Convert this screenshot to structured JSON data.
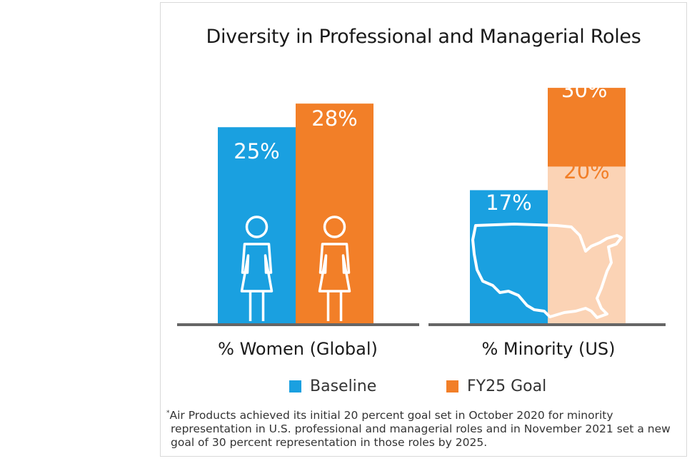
{
  "chart_data": {
    "type": "bar",
    "title": "Diversity in Professional and Managerial Roles",
    "categories": [
      "% Women (Global)",
      "% Minority (US)"
    ],
    "series": [
      {
        "name": "Baseline",
        "values": [
          25,
          17
        ],
        "labels": [
          "25%",
          "17%"
        ],
        "color": "#1aa0e0"
      },
      {
        "name": "FY25 Goal",
        "values": [
          28,
          30
        ],
        "labels": [
          "28%",
          "30%"
        ],
        "color": "#f27f28"
      }
    ],
    "secondary_marker": {
      "category": "% Minority (US)",
      "value": 20,
      "label": "20%",
      "asterisk": "*",
      "color": "#fbd3b5",
      "label_color": "#f27f28"
    },
    "ylim": [
      0,
      33
    ],
    "grid": false,
    "legend": "bottom",
    "icons": [
      "woman-icon",
      "woman-icon",
      "usa-map-icon"
    ]
  },
  "footnote": {
    "asterisk": "*",
    "lines": [
      "Air Products achieved its initial 20 percent goal set in October 2020 for minority",
      "representation in U.S. professional and managerial roles and in November 2021 set a new",
      "goal of 30 percent representation in those roles by 2025."
    ]
  }
}
